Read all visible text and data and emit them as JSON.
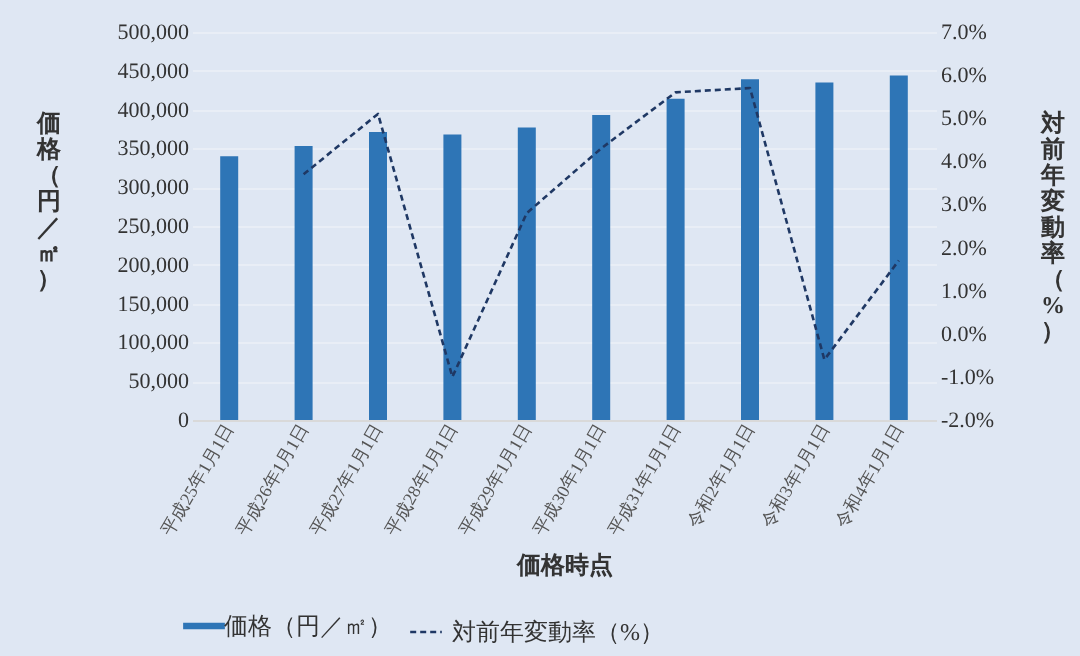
{
  "chart_data": {
    "type": "bar",
    "categories": [
      "平成25年1月1日",
      "平成26年1月1日",
      "平成27年1月1日",
      "平成28年1月1日",
      "平成29年1月1日",
      "平成30年1月1日",
      "平成31年1月1日",
      "令和2年1月1日",
      "令和3年1月1日",
      "令和4年1月1日"
    ],
    "xlabel": "価格時点",
    "ylabel": "価格（円／㎡）",
    "y2label": "対前年変動率（%）",
    "series": [
      {
        "name": "価格（円／㎡）",
        "color": "#2e75b6",
        "values": [
          340000,
          353000,
          371000,
          368000,
          377000,
          393000,
          414000,
          439000,
          435000,
          444000
        ]
      },
      {
        "name": "対前年変動率（%）",
        "type": "line",
        "axis": "y2",
        "color": "#1f3864",
        "line_style": "dashed",
        "values": [
          null,
          3.7,
          5.1,
          -1.0,
          2.8,
          4.3,
          5.6,
          5.7,
          -0.6,
          1.7
        ]
      }
    ],
    "ylim": [
      0,
      500000
    ],
    "yticks": [
      {
        "value": 0,
        "label": "0"
      },
      {
        "value": 50000,
        "label": "50,000"
      },
      {
        "value": 100000,
        "label": "100,000"
      },
      {
        "value": 150000,
        "label": "150,000"
      },
      {
        "value": 200000,
        "label": "200,000"
      },
      {
        "value": 250000,
        "label": "250,000"
      },
      {
        "value": 300000,
        "label": "300,000"
      },
      {
        "value": 350000,
        "label": "350,000"
      },
      {
        "value": 400000,
        "label": "400,000"
      },
      {
        "value": 450000,
        "label": "450,000"
      },
      {
        "value": 500000,
        "label": "500,000"
      }
    ],
    "y2lim": [
      -2,
      7
    ],
    "y2ticks": [
      {
        "value": -2,
        "label": "-2.0%"
      },
      {
        "value": -1,
        "label": "-1.0%"
      },
      {
        "value": 0,
        "label": "0.0%"
      },
      {
        "value": 1,
        "label": "1.0%"
      },
      {
        "value": 2,
        "label": "2.0%"
      },
      {
        "value": 3,
        "label": "3.0%"
      },
      {
        "value": 4,
        "label": "4.0%"
      },
      {
        "value": 5,
        "label": "5.0%"
      },
      {
        "value": 6,
        "label": "6.0%"
      },
      {
        "value": 7,
        "label": "7.0%"
      }
    ],
    "grid": "y",
    "legend": "bottom"
  }
}
